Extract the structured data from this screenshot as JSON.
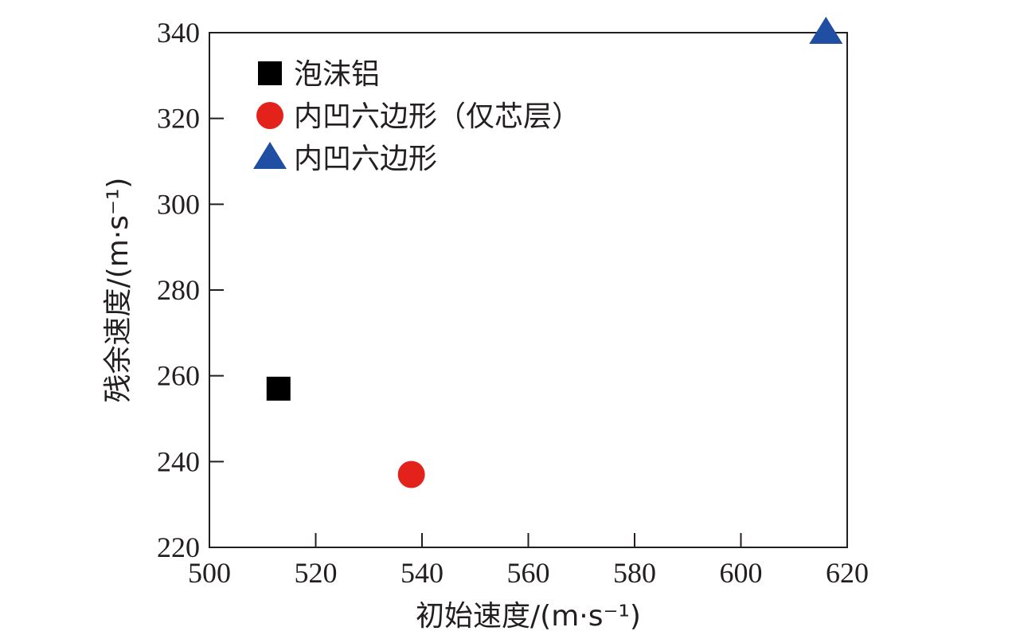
{
  "chart_data": {
    "type": "scatter",
    "title": "",
    "xlabel": "初始速度/(m·s⁻¹)",
    "ylabel": "残余速度/(m·s⁻¹)",
    "xlim": [
      500,
      620
    ],
    "ylim": [
      220,
      340
    ],
    "x_ticks": [
      500,
      520,
      540,
      560,
      580,
      600,
      620
    ],
    "y_ticks": [
      220,
      240,
      260,
      280,
      300,
      320,
      340
    ],
    "grid": false,
    "legend_position": "top-left",
    "series": [
      {
        "name": "泡沫铝",
        "marker": "square",
        "color": "#000000",
        "points": [
          {
            "x": 513,
            "y": 257
          }
        ]
      },
      {
        "name": "内凹六边形（仅芯层）",
        "marker": "circle",
        "color": "#e3231b",
        "points": [
          {
            "x": 538,
            "y": 237
          }
        ]
      },
      {
        "name": "内凹六边形",
        "marker": "triangle",
        "color": "#1f4ea3",
        "points": [
          {
            "x": 616,
            "y": 340
          }
        ]
      }
    ]
  }
}
